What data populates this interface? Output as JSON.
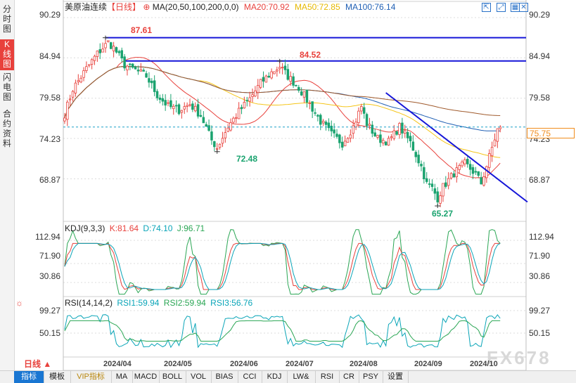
{
  "left_tabs": [
    {
      "label": "分时图",
      "active": false
    },
    {
      "label": "K线图",
      "active": true
    },
    {
      "label": "闪电图",
      "active": false
    },
    {
      "label": "合约资料",
      "active": false
    }
  ],
  "main_panel": {
    "instrument": "美原油连续",
    "period_tag": "【日线】",
    "ma_params": "MA(20,50,100,200,0,0)",
    "ma20": "MA20:70.92",
    "ma50": "MA50:72.85",
    "ma100": "MA100:76.14",
    "y_ticks": [
      "90.29",
      "84.94",
      "79.58",
      "74.23",
      "68.87"
    ],
    "annotations": {
      "high_1": "87.61",
      "high_2": "84.52",
      "low_1": "72.48",
      "low_2": "65.27"
    },
    "current_price": "75.75"
  },
  "kdj_panel": {
    "title": "KDJ(9,3,3)",
    "k": "K:81.64",
    "d": "D:74.10",
    "j": "J:96.71",
    "y_ticks": [
      "112.94",
      "71.90",
      "30.86"
    ]
  },
  "rsi_panel": {
    "title": "RSI(14,14,2)",
    "rsi1": "RSI1:59.94",
    "rsi2": "RSI2:59.94",
    "rsi3": "RSI3:56.76",
    "y_ticks": [
      "99.27",
      "50.15"
    ]
  },
  "x_axis": {
    "period_button": "日线",
    "dates": [
      "2024/04",
      "2024/05",
      "2024/06",
      "2024/07",
      "2024/08",
      "2024/09",
      "2024/10"
    ]
  },
  "watermark": "FX678",
  "bottom_toolbar": [
    {
      "label": "指标",
      "style": "active"
    },
    {
      "label": "模板",
      "style": "normal"
    },
    {
      "label": "VIP指标",
      "style": "vip"
    },
    {
      "label": "MA",
      "style": "normal"
    },
    {
      "label": "MACD",
      "style": "normal"
    },
    {
      "label": "BOLL",
      "style": "normal"
    },
    {
      "label": "VOL",
      "style": "normal"
    },
    {
      "label": "BIAS",
      "style": "normal"
    },
    {
      "label": "CCI",
      "style": "normal"
    },
    {
      "label": "KDJ",
      "style": "normal"
    },
    {
      "label": "LW&",
      "style": "normal"
    },
    {
      "label": "RSI",
      "style": "normal"
    },
    {
      "label": "CR",
      "style": "normal"
    },
    {
      "label": "PSY",
      "style": "normal"
    },
    {
      "label": "设置",
      "style": "normal"
    }
  ],
  "top_icons": [
    "fullscreen-icon",
    "expand-icon",
    "layout-icon",
    "close-icon"
  ],
  "colors": {
    "up": "#e8413c",
    "down": "#1aa36f",
    "ma20": "#e8413c",
    "ma50": "#f5c518",
    "ma100": "#1f5fb4",
    "ma200": "#a05a2c",
    "trend": "#1515d8",
    "current_price": "#f08c1c"
  },
  "chart_data": {
    "type": "candlestick",
    "symbol": "美原油连续",
    "period": "日线",
    "yrange": [
      63.5,
      91.5
    ],
    "y_ticks": [
      90.29,
      84.94,
      79.58,
      74.23,
      68.87
    ],
    "x_labels": [
      "2024/04",
      "2024/05",
      "2024/06",
      "2024/07",
      "2024/08",
      "2024/09",
      "2024/10"
    ],
    "knots": [
      [
        0,
        77.5
      ],
      [
        3,
        80.8
      ],
      [
        8,
        83.5
      ],
      [
        12,
        85.5
      ],
      [
        16,
        87.0
      ],
      [
        18,
        86.3
      ],
      [
        22,
        84.0
      ],
      [
        26,
        83.3
      ],
      [
        30,
        82.5
      ],
      [
        34,
        80.0
      ],
      [
        38,
        78.5
      ],
      [
        42,
        78.0
      ],
      [
        46,
        78.8
      ],
      [
        50,
        77.3
      ],
      [
        54,
        74.0
      ],
      [
        56,
        73.0
      ],
      [
        60,
        75.8
      ],
      [
        64,
        77.8
      ],
      [
        68,
        79.5
      ],
      [
        72,
        81.6
      ],
      [
        76,
        83.0
      ],
      [
        79,
        83.8
      ],
      [
        82,
        82.5
      ],
      [
        86,
        81.0
      ],
      [
        90,
        78.8
      ],
      [
        94,
        76.5
      ],
      [
        98,
        74.8
      ],
      [
        102,
        73.6
      ],
      [
        106,
        75.8
      ],
      [
        109,
        78.5
      ],
      [
        111,
        76.2
      ],
      [
        115,
        74.2
      ],
      [
        119,
        73.8
      ],
      [
        123,
        75.8
      ],
      [
        127,
        73.7
      ],
      [
        131,
        70.5
      ],
      [
        133,
        68.2
      ],
      [
        135,
        67.6
      ],
      [
        137,
        66.3
      ],
      [
        139,
        67.8
      ],
      [
        143,
        69.6
      ],
      [
        147,
        70.9
      ],
      [
        151,
        69.5
      ],
      [
        153,
        68.3
      ],
      [
        155,
        70.6
      ],
      [
        157,
        73.0
      ],
      [
        159,
        75.4
      ],
      [
        160,
        75.75
      ]
    ],
    "marked_points": [
      {
        "label": "87.61",
        "price": 87.61,
        "index": 15
      },
      {
        "label": "84.52",
        "price": 84.52,
        "index": 79
      },
      {
        "label": "72.48",
        "price": 72.48,
        "index": 56
      },
      {
        "label": "65.27",
        "price": 65.27,
        "index": 137
      }
    ],
    "horizontal_lines": [
      87.61,
      84.52
    ],
    "trend_line": {
      "from": [
        118,
        80.3
      ],
      "to": [
        170,
        65.8
      ]
    },
    "current_price": 75.75,
    "moving_averages": {
      "MA20": 70.92,
      "MA50": 72.85,
      "MA100": 76.14
    },
    "kdj": {
      "K": 81.64,
      "D": 74.1,
      "J": 96.71,
      "yrange": [
        0,
        125
      ]
    },
    "rsi": {
      "RSI1": 59.94,
      "RSI2": 59.94,
      "RSI3": 56.76,
      "yrange": [
        0,
        115
      ]
    }
  }
}
